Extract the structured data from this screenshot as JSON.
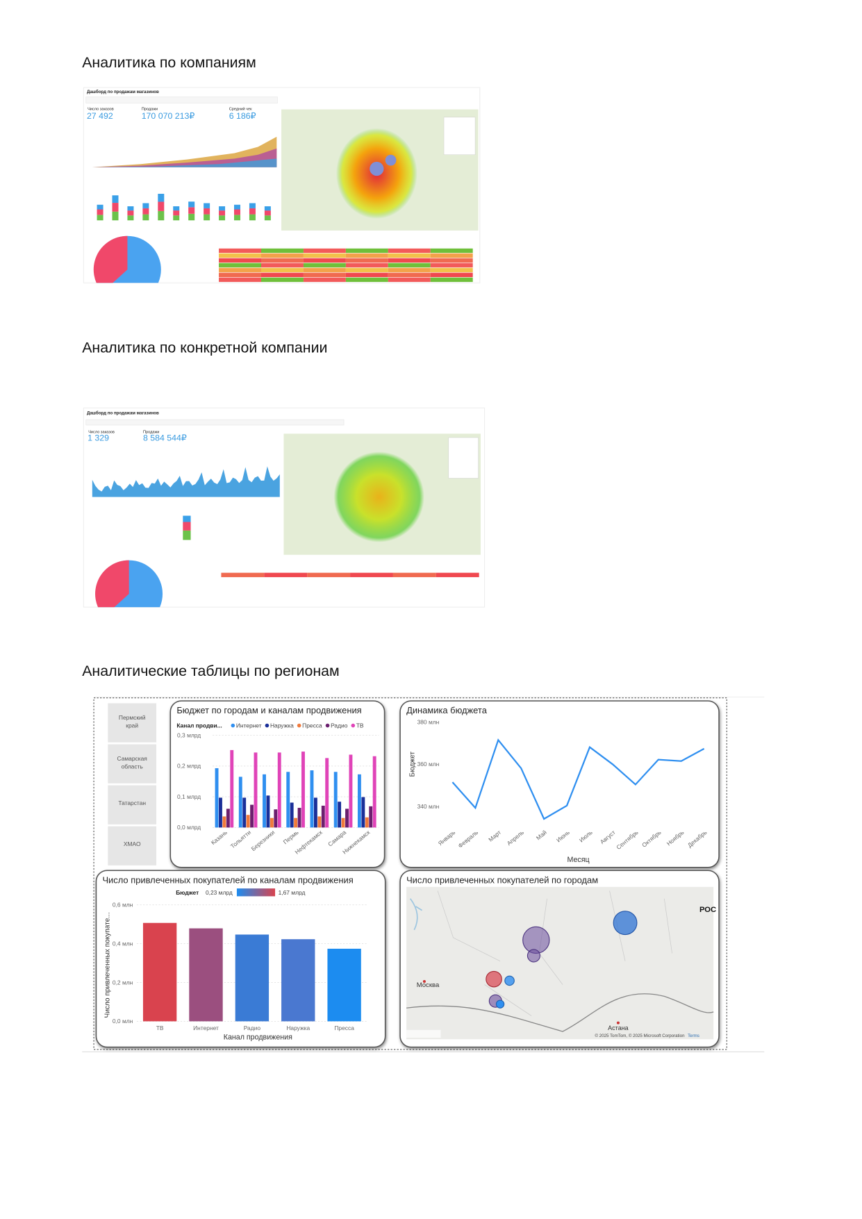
{
  "document": {
    "headings": [
      "Аналитика по компаниям",
      "Аналитика по конкретной компании",
      "Аналитические таблицы по регионам"
    ],
    "dashboards": [
      {
        "title": "Дашборд по продажам магазинов",
        "kpis": [
          {
            "label": "Число заказов",
            "value": "27 492"
          },
          {
            "label": "Продажи",
            "value": "170 070 213₽"
          },
          {
            "label": "Средний чек",
            "value": "6 186₽"
          }
        ]
      },
      {
        "title": "Дашборд по продажам магазинов",
        "kpis": [
          {
            "label": "Число заказов",
            "value": "1 329"
          },
          {
            "label": "Продажи",
            "value": "8 584 544₽"
          }
        ]
      }
    ],
    "regions": [
      "Пермский край",
      "Самарская область",
      "Татарстан",
      "ХМАО"
    ]
  },
  "chart_data": [
    {
      "type": "grouped-bar",
      "title": "Бюджет по городам и каналам продвижения",
      "legend_title": "Канал продви...",
      "categories": [
        "Казань",
        "Тольятти",
        "Березники",
        "Пермь",
        "Нефтекамск",
        "Самара",
        "Нижнекамск"
      ],
      "series": [
        {
          "name": "Интернет",
          "color": "#2f8ff0",
          "values": [
            0.193,
            0.165,
            0.173,
            0.181,
            0.186,
            0.181,
            0.173
          ]
        },
        {
          "name": "Наружка",
          "color": "#1a2f99",
          "values": [
            0.097,
            0.097,
            0.104,
            0.081,
            0.097,
            0.084,
            0.099
          ]
        },
        {
          "name": "Пресса",
          "color": "#f07a3c",
          "values": [
            0.036,
            0.041,
            0.031,
            0.031,
            0.036,
            0.031,
            0.033
          ]
        },
        {
          "name": "Радио",
          "color": "#6b1f6e",
          "values": [
            0.061,
            0.074,
            0.059,
            0.064,
            0.071,
            0.061,
            0.069
          ]
        },
        {
          "name": "ТВ",
          "color": "#e044b8",
          "values": [
            0.252,
            0.244,
            0.244,
            0.247,
            0.226,
            0.237,
            0.232
          ]
        }
      ],
      "ylim": [
        0,
        0.3
      ],
      "yticks": [
        {
          "value": 0,
          "label": "0,0 млрд"
        },
        {
          "value": 0.1,
          "label": "0,1 млрд"
        },
        {
          "value": 0.2,
          "label": "0,2 млрд"
        },
        {
          "value": 0.3,
          "label": "0,3 млрд"
        }
      ]
    },
    {
      "type": "line",
      "title": "Динамика бюджета",
      "x_label": "Месяц",
      "y_label": "Бюджет",
      "color": "#2f8ff0",
      "categories": [
        "Январь",
        "Февраль",
        "Март",
        "Апрель",
        "Май",
        "Июнь",
        "Июль",
        "Август",
        "Сентябрь",
        "Октябрь",
        "Ноябрь",
        "Декабрь"
      ],
      "values": [
        351.5,
        339.3,
        371.5,
        358.1,
        334.1,
        340.4,
        368.1,
        360,
        350.4,
        362.2,
        361.5,
        367.4
      ],
      "ylim": [
        331.5,
        381.5
      ],
      "yticks": [
        {
          "value": 340,
          "label": "340 млн"
        },
        {
          "value": 360,
          "label": "360 млн"
        },
        {
          "value": 380,
          "label": "380 млн"
        }
      ]
    },
    {
      "type": "bar",
      "title": "Число привлеченных покупателей по каналам продвижения",
      "x_label": "Канал продвижения",
      "y_label": "Число привлеченных покупате...",
      "legend_title": "Бюджет",
      "legend_min": "0,23 млрд",
      "legend_max": "1,67 млрд",
      "categories": [
        "ТВ",
        "Интернет",
        "Радио",
        "Наружка",
        "Пресса"
      ],
      "values": [
        0.507,
        0.479,
        0.447,
        0.423,
        0.374
      ],
      "colors": [
        "#d9434e",
        "#9b4f7f",
        "#3a7bd5",
        "#4a78d0",
        "#1c8cf0"
      ],
      "ylim": [
        0,
        0.6
      ],
      "yticks": [
        {
          "value": 0,
          "label": "0,0 млн"
        },
        {
          "value": 0.2,
          "label": "0,2 млн"
        },
        {
          "value": 0.4,
          "label": "0,4 млн"
        },
        {
          "value": 0.6,
          "label": "0,6 млн"
        }
      ]
    },
    {
      "type": "map",
      "title": "Число привлеченных покупателей по городам",
      "labels": [
        "Москва",
        "Астана",
        "РОС"
      ],
      "attribution": "© 2025 TomTom, © 2025 Microsoft Corporation",
      "terms": "Terms"
    }
  ]
}
